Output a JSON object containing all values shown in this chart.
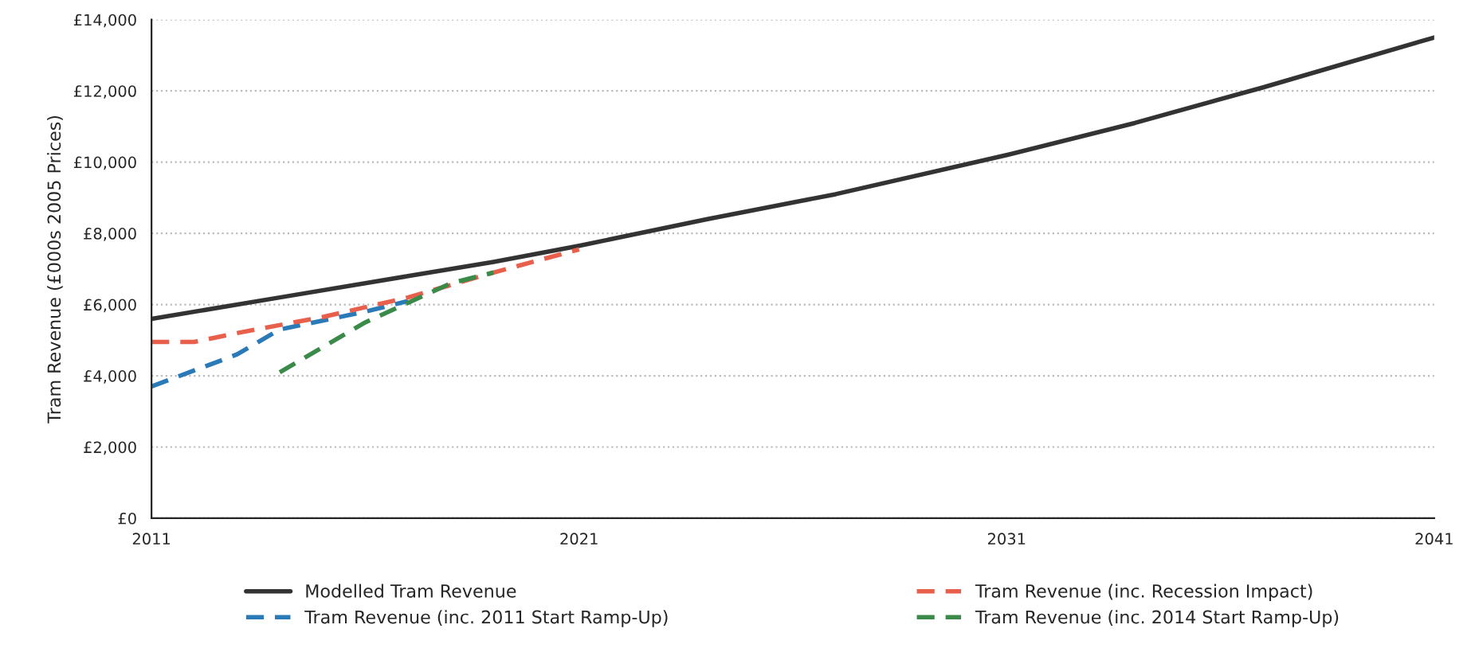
{
  "chart_data": {
    "type": "line",
    "ylabel": "Tram Revenue (£000s 2005 Prices)",
    "xlim": [
      2011,
      2041
    ],
    "xticks": [
      2011,
      2021,
      2031,
      2041
    ],
    "ylim": [
      0,
      14000
    ],
    "yticks": [
      {
        "value": 0,
        "label": "£0"
      },
      {
        "value": 2000,
        "label": "£2,000"
      },
      {
        "value": 4000,
        "label": "£4,000"
      },
      {
        "value": 6000,
        "label": "£6,000"
      },
      {
        "value": 8000,
        "label": "£8,000"
      },
      {
        "value": 10000,
        "label": "£10,000"
      },
      {
        "value": 12000,
        "label": "£12,000"
      },
      {
        "value": 14000,
        "label": "£14,000"
      }
    ],
    "grid": "y",
    "legend": "bottom",
    "series": [
      {
        "name": "Modelled Tram Revenue",
        "color": "#333333",
        "line_style": "solid",
        "x": [
          2011,
          2014,
          2017,
          2019,
          2021,
          2024,
          2027,
          2031,
          2034,
          2037,
          2041
        ],
        "values": [
          5600,
          6200,
          6800,
          7200,
          7650,
          8400,
          9100,
          10200,
          11100,
          12100,
          13500
        ]
      },
      {
        "name": "Tram Revenue (inc. 2011 Start Ramp-Up)",
        "color": "#2a7ab8",
        "line_style": "dashed",
        "x": [
          2011,
          2013,
          2014,
          2016,
          2017
        ],
        "values": [
          3700,
          4600,
          5300,
          5800,
          6100
        ]
      },
      {
        "name": "Tram Revenue (inc. Recession Impact)",
        "color": "#e8604c",
        "line_style": "dashed",
        "x": [
          2011,
          2012,
          2013,
          2015,
          2017,
          2019,
          2021
        ],
        "values": [
          4950,
          4950,
          5200,
          5650,
          6200,
          6900,
          7550
        ]
      },
      {
        "name": "Tram Revenue (inc. 2014 Start Ramp-Up)",
        "color": "#3a8a4a",
        "line_style": "dashed",
        "x": [
          2014,
          2016,
          2018,
          2019
        ],
        "values": [
          4100,
          5500,
          6600,
          6900
        ]
      }
    ]
  }
}
